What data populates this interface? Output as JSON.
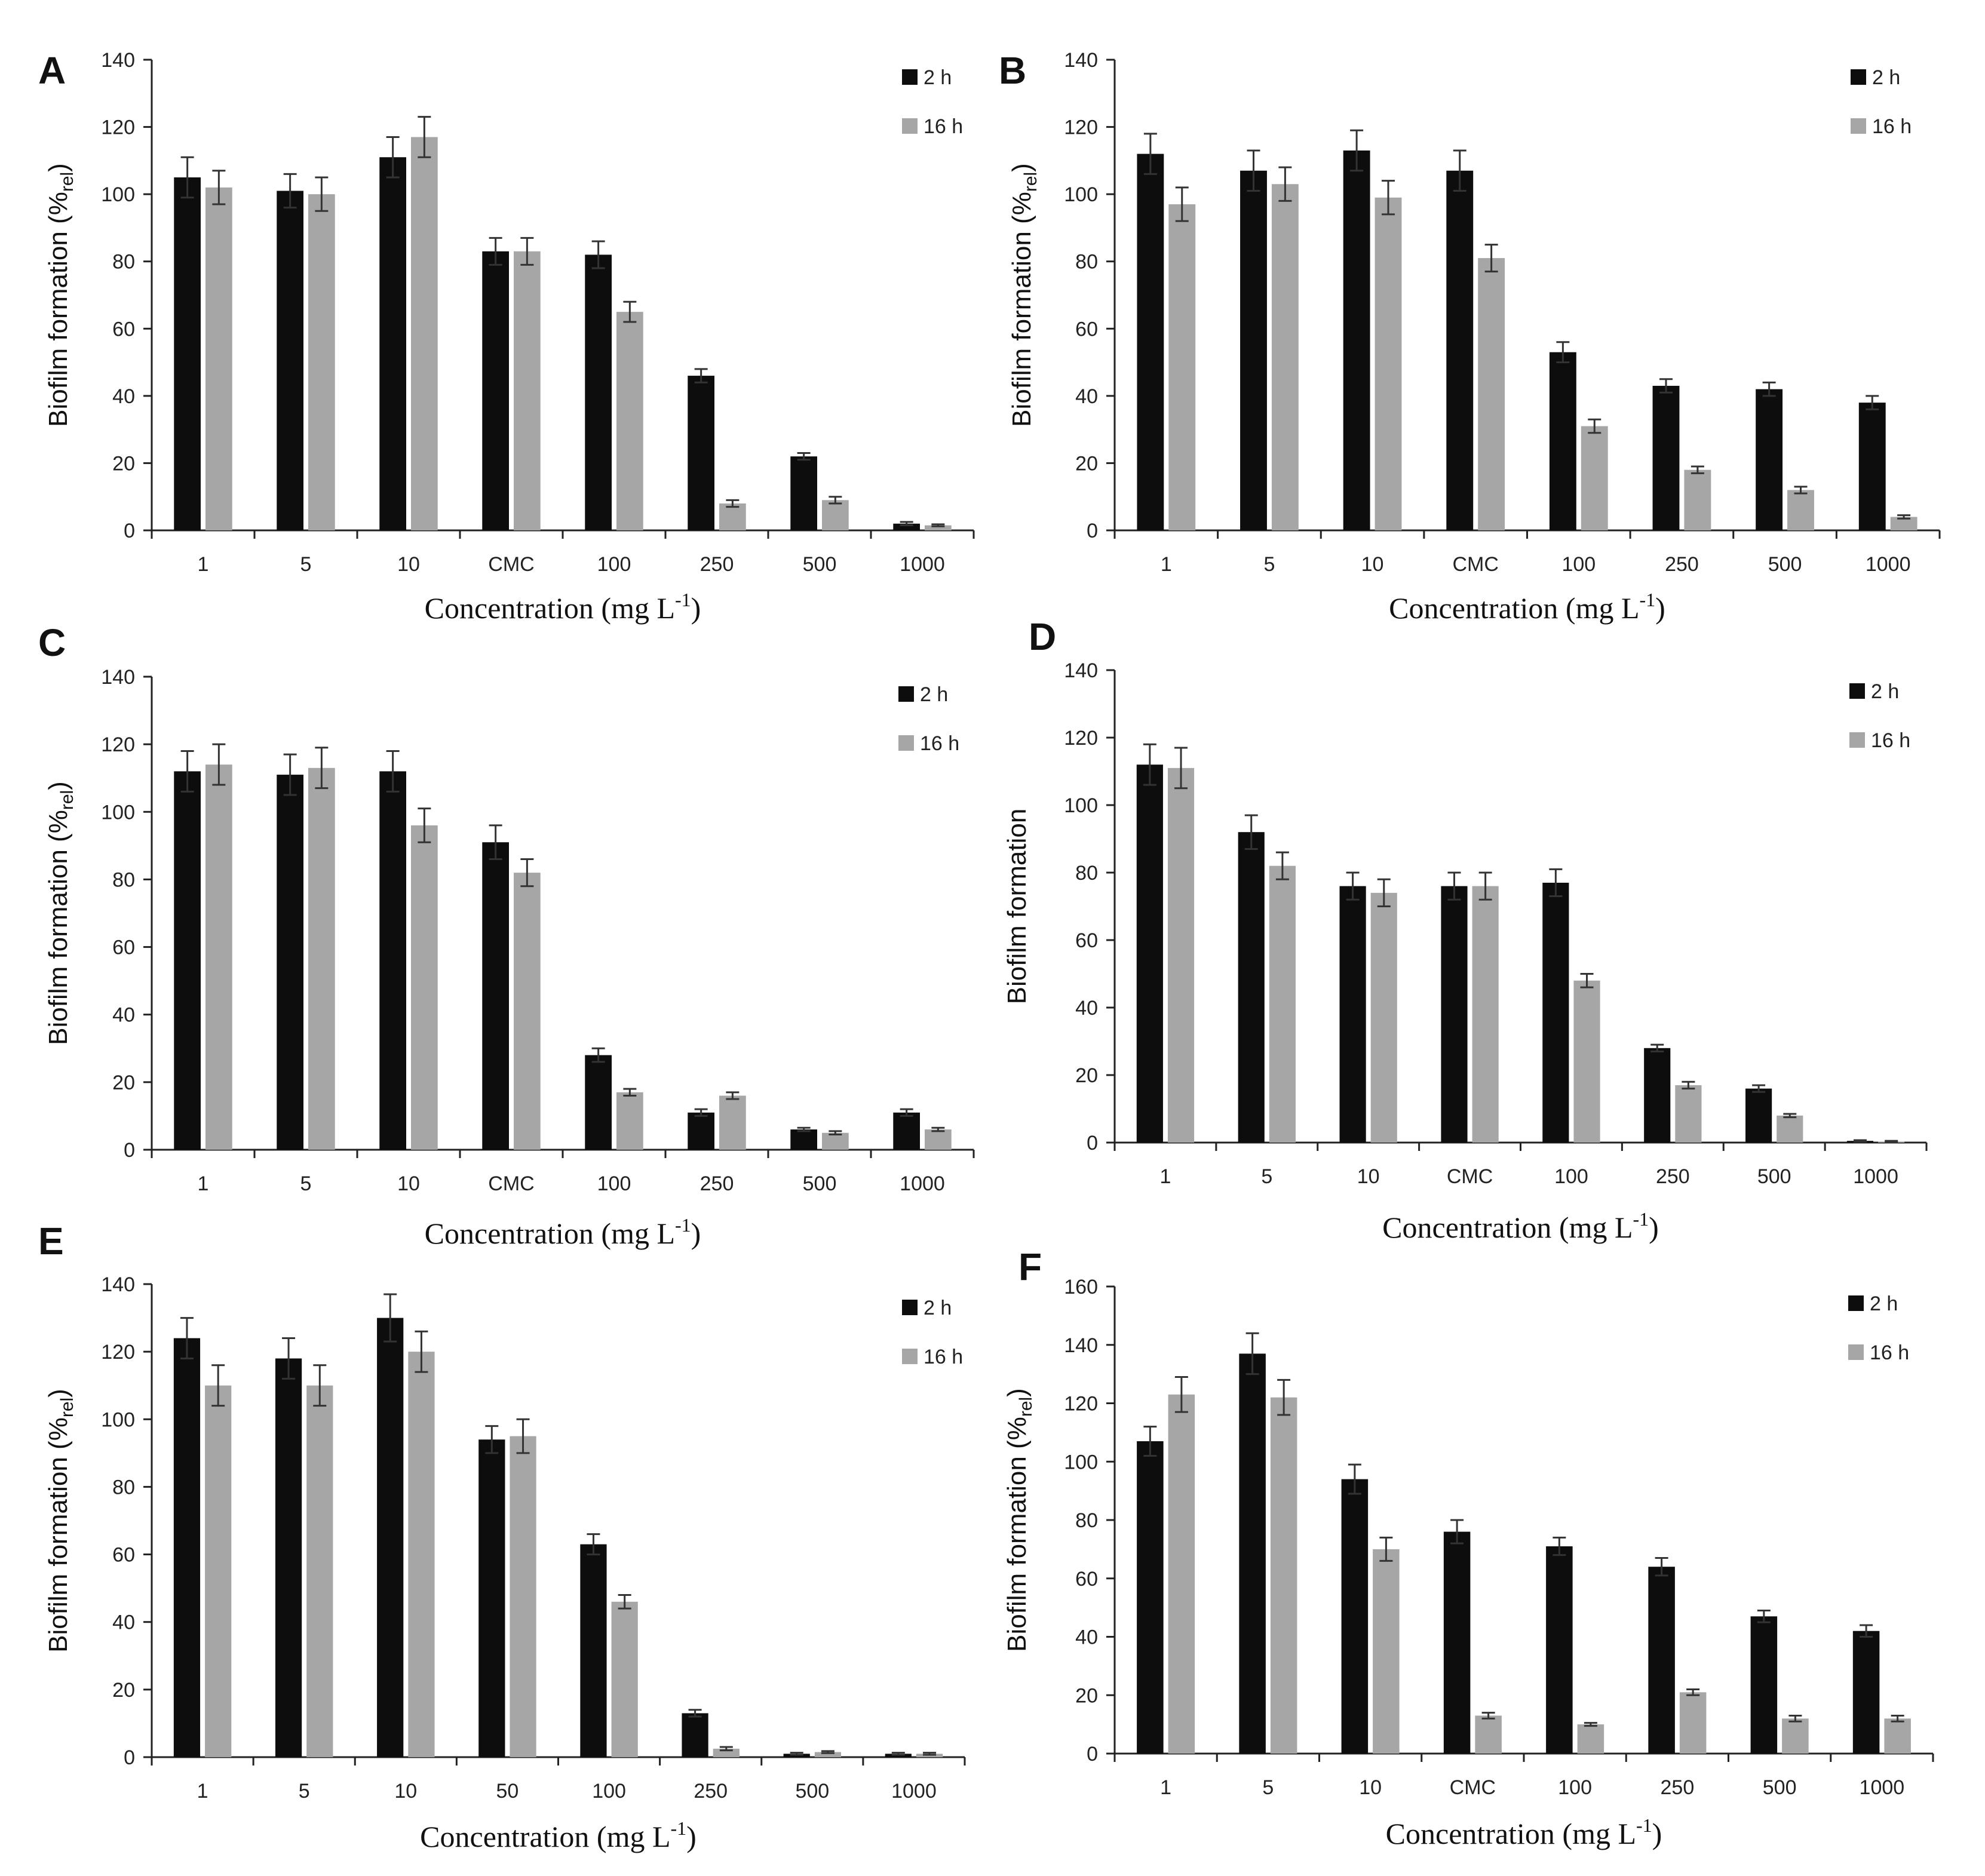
{
  "colors": {
    "series_2h": "#0d0d0d",
    "series_16h": "#a6a6a6",
    "axis": "#222222",
    "error_bar": "#333333"
  },
  "chart_data": [
    {
      "panel": "A",
      "type": "bar",
      "title": "",
      "xlabel": "Concentration (mg L",
      "xlabel_sup": "-1",
      "xlabel_close": ")",
      "ylabel": "Biofilm formation (%",
      "ylabel_sub": "rel",
      "ylabel_close": ")",
      "ylim": [
        0,
        140
      ],
      "yticks": [
        "0",
        "20",
        "40",
        "60",
        "80",
        "100",
        "120",
        "140"
      ],
      "categories": [
        "1",
        "5",
        "10",
        "CMC",
        "100",
        "250",
        "500",
        "1000"
      ],
      "series": [
        {
          "name": "2 h",
          "values": [
            105,
            101,
            111,
            83,
            82,
            46,
            22,
            2
          ],
          "errors": [
            6,
            5,
            6,
            4,
            4,
            2,
            1,
            0.5
          ]
        },
        {
          "name": "16 h",
          "values": [
            102,
            100,
            117,
            83,
            65,
            8,
            9,
            1.5
          ],
          "errors": [
            5,
            5,
            6,
            4,
            3,
            1,
            1,
            0.3
          ]
        }
      ]
    },
    {
      "panel": "B",
      "type": "bar",
      "title": "",
      "xlabel": "Concentration (mg L",
      "xlabel_sup": "-1",
      "xlabel_close": ")",
      "ylabel": "Biofilm formation (%",
      "ylabel_sub": "rel",
      "ylabel_close": ")",
      "ylim": [
        0,
        140
      ],
      "yticks": [
        "0",
        "20",
        "40",
        "60",
        "80",
        "100",
        "120",
        "140"
      ],
      "categories": [
        "1",
        "5",
        "10",
        "CMC",
        "100",
        "250",
        "500",
        "1000"
      ],
      "series": [
        {
          "name": "2 h",
          "values": [
            112,
            107,
            113,
            107,
            53,
            43,
            42,
            38
          ],
          "errors": [
            6,
            6,
            6,
            6,
            3,
            2,
            2,
            2
          ]
        },
        {
          "name": "16 h",
          "values": [
            97,
            103,
            99,
            81,
            31,
            18,
            12,
            4
          ],
          "errors": [
            5,
            5,
            5,
            4,
            2,
            1,
            1,
            0.5
          ]
        }
      ]
    },
    {
      "panel": "C",
      "type": "bar",
      "title": "",
      "xlabel": "Concentration (mg L",
      "xlabel_sup": "-1",
      "xlabel_close": ")",
      "ylabel": "Biofilm formation (%",
      "ylabel_sub": "rel",
      "ylabel_close": ")",
      "ylim": [
        0,
        140
      ],
      "yticks": [
        "0",
        "20",
        "40",
        "60",
        "80",
        "100",
        "120",
        "140"
      ],
      "categories": [
        "1",
        "5",
        "10",
        "CMC",
        "100",
        "250",
        "500",
        "1000"
      ],
      "series": [
        {
          "name": "2 h",
          "values": [
            112,
            111,
            112,
            91,
            28,
            11,
            6,
            11
          ],
          "errors": [
            6,
            6,
            6,
            5,
            2,
            1,
            0.5,
            1
          ]
        },
        {
          "name": "16 h",
          "values": [
            114,
            113,
            96,
            82,
            17,
            16,
            5,
            6
          ],
          "errors": [
            6,
            6,
            5,
            4,
            1,
            1,
            0.5,
            0.5
          ]
        }
      ]
    },
    {
      "panel": "D",
      "type": "bar",
      "title": "",
      "xlabel": "Concentration (mg L",
      "xlabel_sup": "-1",
      "xlabel_close": ")",
      "ylabel": "Biofilm formation",
      "ylabel_sub": "",
      "ylabel_close": "",
      "ylim": [
        0,
        140
      ],
      "yticks": [
        "0",
        "20",
        "40",
        "60",
        "80",
        "100",
        "120",
        "140"
      ],
      "categories": [
        "1",
        "5",
        "10",
        "CMC",
        "100",
        "250",
        "500",
        "1000"
      ],
      "series": [
        {
          "name": "2 h",
          "values": [
            112,
            92,
            76,
            76,
            77,
            28,
            16,
            0.5
          ],
          "errors": [
            6,
            5,
            4,
            4,
            4,
            1,
            1,
            0.2
          ]
        },
        {
          "name": "16 h",
          "values": [
            111,
            82,
            74,
            76,
            48,
            17,
            8,
            0.3
          ],
          "errors": [
            6,
            4,
            4,
            4,
            2,
            1,
            0.5,
            0.2
          ]
        }
      ]
    },
    {
      "panel": "E",
      "type": "bar",
      "title": "",
      "xlabel": "Concentration (mg L",
      "xlabel_sup": "-1",
      "xlabel_close": ")",
      "ylabel": "Biofilm formation (%",
      "ylabel_sub": "rel",
      "ylabel_close": ")",
      "ylim": [
        0,
        140
      ],
      "yticks": [
        "0",
        "20",
        "40",
        "60",
        "80",
        "100",
        "120",
        "140"
      ],
      "categories": [
        "1",
        "5",
        "10",
        "50",
        "100",
        "250",
        "500",
        "1000"
      ],
      "series": [
        {
          "name": "2 h",
          "values": [
            124,
            118,
            130,
            94,
            63,
            13,
            1,
            1
          ],
          "errors": [
            6,
            6,
            7,
            4,
            3,
            1,
            0.3,
            0.3
          ]
        },
        {
          "name": "16 h",
          "values": [
            110,
            110,
            120,
            95,
            46,
            2.5,
            1.5,
            1
          ],
          "errors": [
            6,
            6,
            6,
            5,
            2,
            0.5,
            0.3,
            0.3
          ]
        }
      ]
    },
    {
      "panel": "F",
      "type": "bar",
      "title": "",
      "xlabel": "Concentration (mg L",
      "xlabel_sup": "-1",
      "xlabel_close": ")",
      "ylabel": "Biofilm formation (%",
      "ylabel_sub": "rel",
      "ylabel_close": ")",
      "ylim": [
        0,
        160
      ],
      "yticks": [
        "0",
        "20",
        "40",
        "60",
        "80",
        "100",
        "120",
        "140",
        "160"
      ],
      "categories": [
        "1",
        "5",
        "10",
        "CMC",
        "100",
        "250",
        "500",
        "1000"
      ],
      "series": [
        {
          "name": "2 h",
          "values": [
            107,
            137,
            94,
            76,
            71,
            64,
            47,
            42
          ],
          "errors": [
            5,
            7,
            5,
            4,
            3,
            3,
            2,
            2
          ]
        },
        {
          "name": "16 h",
          "values": [
            123,
            122,
            70,
            13,
            10,
            21,
            12,
            12
          ],
          "errors": [
            6,
            6,
            4,
            1,
            0.5,
            1,
            1,
            1
          ]
        }
      ]
    }
  ]
}
